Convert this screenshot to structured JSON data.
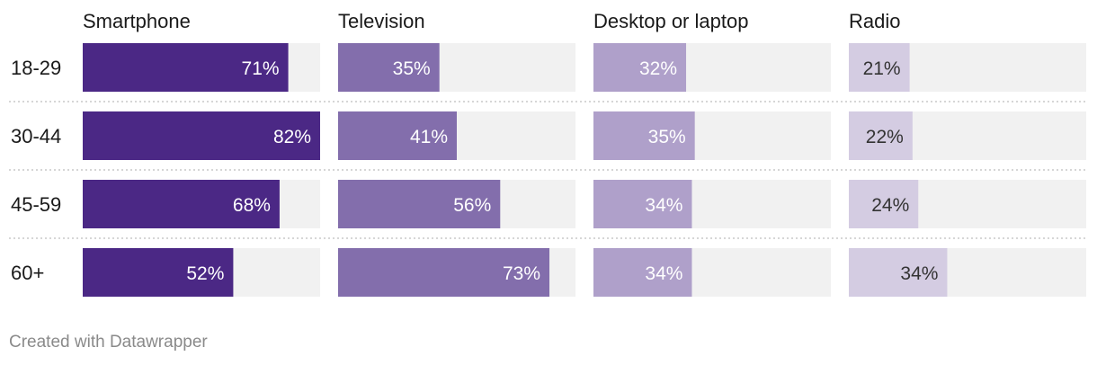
{
  "chart_data": {
    "type": "bar",
    "orientation": "horizontal",
    "layout": "small-multiples",
    "categories": [
      "18-29",
      "30-44",
      "45-59",
      "60+"
    ],
    "series": [
      {
        "name": "Smartphone",
        "values": [
          71,
          82,
          68,
          52
        ],
        "color": "#4b2885",
        "label_color": "#ffffff"
      },
      {
        "name": "Television",
        "values": [
          35,
          41,
          56,
          73
        ],
        "color": "#836eac",
        "label_color": "#ffffff"
      },
      {
        "name": "Desktop or laptop",
        "values": [
          32,
          35,
          34,
          34
        ],
        "color": "#afa0ca",
        "label_color": "#ffffff"
      },
      {
        "name": "Radio",
        "values": [
          21,
          22,
          24,
          34
        ],
        "color": "#d4cce2",
        "label_color": "#333333"
      }
    ],
    "value_suffix": "%",
    "xlim": [
      0,
      82
    ],
    "track_color": "#f1f1f1",
    "grid": false,
    "row_separators": "dotted"
  },
  "footer": {
    "credit": "Created with Datawrapper"
  }
}
